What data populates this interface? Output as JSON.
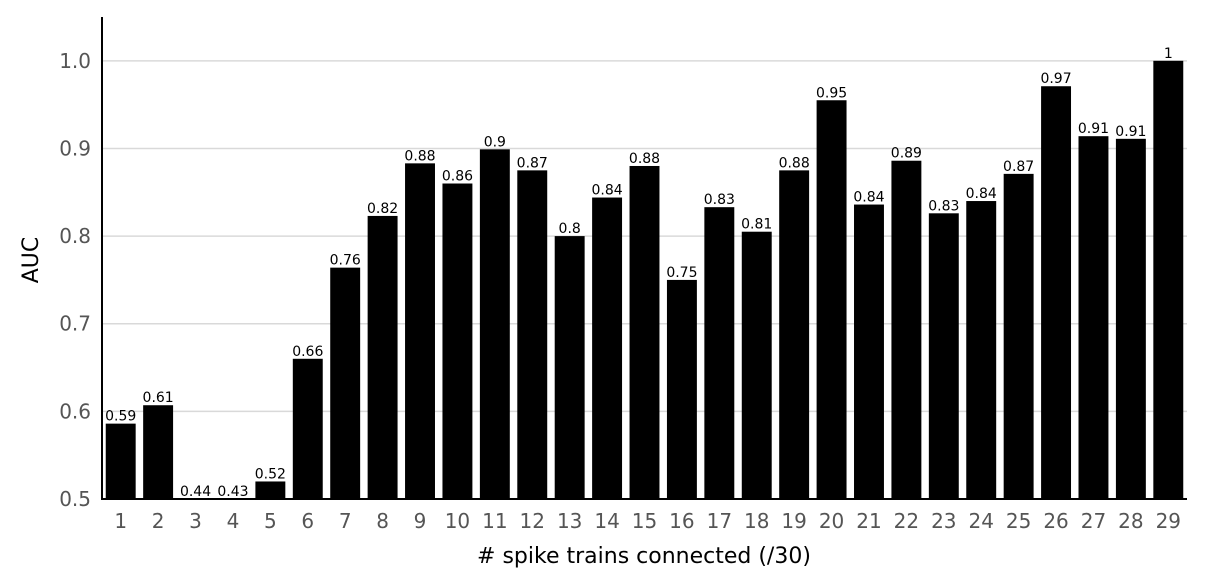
{
  "chart_data": {
    "type": "bar",
    "categories": [
      "1",
      "2",
      "3",
      "4",
      "5",
      "6",
      "7",
      "8",
      "9",
      "10",
      "11",
      "12",
      "13",
      "14",
      "15",
      "16",
      "17",
      "18",
      "19",
      "20",
      "21",
      "22",
      "23",
      "24",
      "25",
      "26",
      "27",
      "28",
      "29"
    ],
    "values": [
      0.586,
      0.607,
      0.44,
      0.43,
      0.52,
      0.66,
      0.764,
      0.823,
      0.883,
      0.86,
      0.899,
      0.875,
      0.8,
      0.844,
      0.88,
      0.75,
      0.833,
      0.805,
      0.875,
      0.955,
      0.836,
      0.886,
      0.826,
      0.84,
      0.871,
      0.971,
      0.914,
      0.911,
      1.0
    ],
    "value_labels": [
      "0.59",
      "0.61",
      "0.44",
      "0.43",
      "0.52",
      "0.66",
      "0.76",
      "0.82",
      "0.88",
      "0.86",
      "0.9",
      "0.87",
      "0.8",
      "0.84",
      "0.88",
      "0.75",
      "0.83",
      "0.81",
      "0.88",
      "0.95",
      "0.84",
      "0.89",
      "0.83",
      "0.84",
      "0.87",
      "0.97",
      "0.91",
      "0.91",
      "1"
    ],
    "xlabel": "# spike trains connected (/30)",
    "ylabel": "AUC",
    "ylim": [
      0.5,
      1.05
    ],
    "yticks": [
      "0.5",
      "0.6",
      "0.7",
      "0.8",
      "0.9",
      "1.0"
    ],
    "grid": "horizontal",
    "bar_color": "#000000",
    "grid_color": "#d9d9d9"
  }
}
